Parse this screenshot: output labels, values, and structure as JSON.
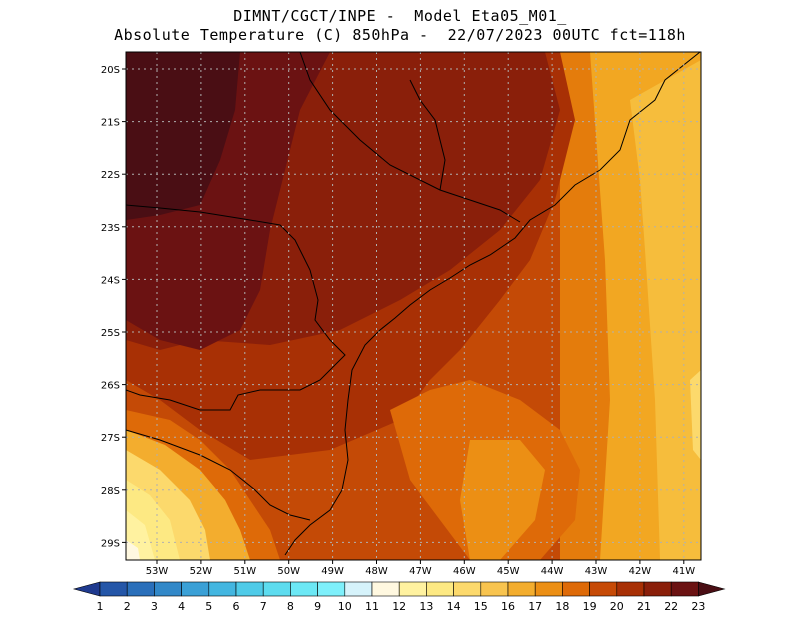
{
  "header": {
    "line1": "DIMNT/CGCT/INPE -  Model Eta05_M01_",
    "line2": "Absolute Temperature (C) 850hPa -  22/07/2023 00UTC fct=118h"
  },
  "map": {
    "lat_labels": [
      "20S",
      "21S",
      "22S",
      "23S",
      "24S",
      "25S",
      "26S",
      "27S",
      "28S",
      "29S"
    ],
    "lon_labels": [
      "53W",
      "52W",
      "51W",
      "50W",
      "49W",
      "48W",
      "47W",
      "46W",
      "45W",
      "44W",
      "43W",
      "42W",
      "41W"
    ]
  },
  "colorbar": {
    "labels": [
      "1",
      "2",
      "3",
      "4",
      "5",
      "6",
      "7",
      "8",
      "9",
      "10",
      "11",
      "12",
      "13",
      "14",
      "15",
      "16",
      "17",
      "18",
      "19",
      "20",
      "21",
      "22",
      "23"
    ],
    "colors": [
      "#1f3a8f",
      "#2456a8",
      "#2a6fba",
      "#3288c8",
      "#3aa0d6",
      "#43b6e0",
      "#4fcbe8",
      "#5ddcef",
      "#6ce8f5",
      "#7ef0fb",
      "#d6f3fb",
      "#fff8e0",
      "#fff2a0",
      "#fde983",
      "#fcd96c",
      "#f8c44f",
      "#f3ad2e",
      "#ec8f14",
      "#de6a08",
      "#c64a06",
      "#a83005",
      "#8a1f0a",
      "#6b1212",
      "#4a0e14"
    ]
  }
}
